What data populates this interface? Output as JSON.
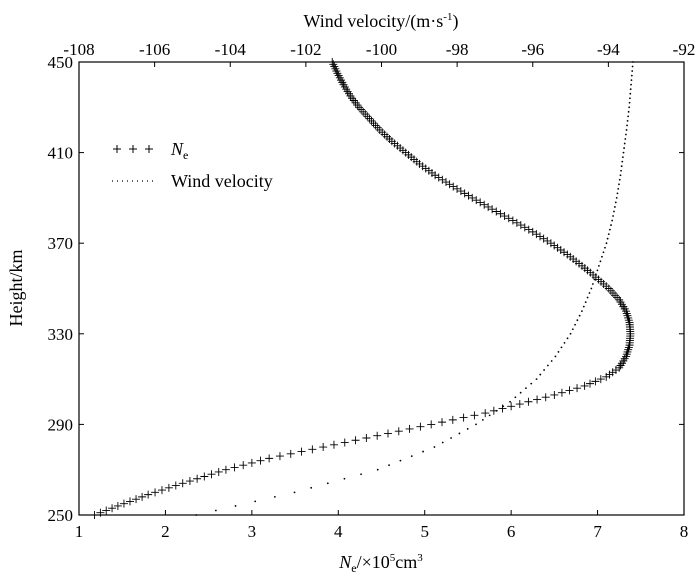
{
  "chart_data": {
    "type": "line",
    "xlabel_bottom": {
      "main": "N",
      "sub": "e",
      "rest": "/×10",
      "sup": "5",
      "unit": "cm",
      "sup2": "3"
    },
    "xlabel_top": {
      "main": "Wind velocity/(m·s",
      "sup": "-1",
      "tail": ")"
    },
    "ylabel": "Height/km",
    "bottom_ticks": [
      "1",
      "2",
      "3",
      "4",
      "5",
      "6",
      "7",
      "8"
    ],
    "top_ticks": [
      "-108",
      "-106",
      "-104",
      "-102",
      "-100",
      "-98",
      "-96",
      "-94",
      "-92"
    ],
    "y_ticks": [
      "250",
      "290",
      "330",
      "370",
      "410",
      "450"
    ],
    "xlim_bottom": [
      1,
      8
    ],
    "xlim_top": [
      -108,
      -92
    ],
    "ylim": [
      250,
      450
    ],
    "legend_position": "top-left",
    "series": [
      {
        "name": "Ne",
        "legend": {
          "main": "N",
          "sub": "e"
        },
        "axis": "bottom",
        "marker": "+",
        "points": [
          [
            1.18,
            250
          ],
          [
            1.45,
            254
          ],
          [
            1.8,
            259
          ],
          [
            2.2,
            264
          ],
          [
            2.7,
            270
          ],
          [
            3.2,
            275
          ],
          [
            3.7,
            279
          ],
          [
            4.2,
            283
          ],
          [
            4.7,
            287
          ],
          [
            5.2,
            291
          ],
          [
            5.7,
            295
          ],
          [
            6.1,
            299
          ],
          [
            6.5,
            303
          ],
          [
            6.85,
            307
          ],
          [
            7.1,
            311
          ],
          [
            7.25,
            315
          ],
          [
            7.33,
            320
          ],
          [
            7.37,
            325
          ],
          [
            7.38,
            330
          ],
          [
            7.37,
            335
          ],
          [
            7.33,
            340
          ],
          [
            7.25,
            345
          ],
          [
            7.13,
            350
          ],
          [
            6.98,
            355
          ],
          [
            6.82,
            360
          ],
          [
            6.65,
            365
          ],
          [
            6.46,
            370
          ],
          [
            6.25,
            375
          ],
          [
            6.02,
            380
          ],
          [
            5.78,
            385
          ],
          [
            5.55,
            390
          ],
          [
            5.33,
            395
          ],
          [
            5.12,
            400
          ],
          [
            4.94,
            405
          ],
          [
            4.78,
            410
          ],
          [
            4.62,
            415
          ],
          [
            4.48,
            420
          ],
          [
            4.36,
            425
          ],
          [
            4.24,
            430
          ],
          [
            4.14,
            435
          ],
          [
            4.06,
            440
          ],
          [
            3.99,
            445
          ],
          [
            3.93,
            450
          ]
        ]
      },
      {
        "name": "Wind velocity",
        "legend": {
          "main": "Wind velocity"
        },
        "axis": "top",
        "marker": "dot",
        "points": [
          [
            -104.9,
            250
          ],
          [
            -102.3,
            260
          ],
          [
            -100.1,
            270
          ],
          [
            -98.6,
            280
          ],
          [
            -97.5,
            290
          ],
          [
            -96.6,
            300
          ],
          [
            -95.9,
            310
          ],
          [
            -95.4,
            320
          ],
          [
            -95.0,
            330
          ],
          [
            -94.7,
            340
          ],
          [
            -94.45,
            350
          ],
          [
            -94.25,
            360
          ],
          [
            -94.05,
            370
          ],
          [
            -93.9,
            380
          ],
          [
            -93.78,
            390
          ],
          [
            -93.68,
            400
          ],
          [
            -93.6,
            410
          ],
          [
            -93.52,
            420
          ],
          [
            -93.45,
            430
          ],
          [
            -93.4,
            440
          ],
          [
            -93.35,
            450
          ]
        ]
      }
    ]
  }
}
